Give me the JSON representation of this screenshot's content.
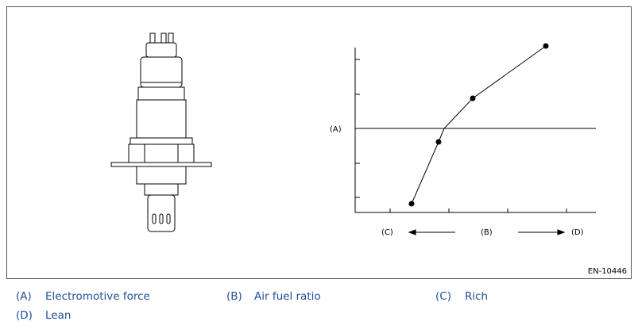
{
  "figure": {
    "graph": {
      "y_label": "(A)",
      "x_labels": {
        "left": "(C)",
        "center": "(B)",
        "right": "(D)"
      }
    },
    "code": "EN-10446"
  },
  "legend": [
    {
      "key": "(A)",
      "text": "Electromotive force"
    },
    {
      "key": "(B)",
      "text": "Air fuel ratio"
    },
    {
      "key": "(C)",
      "text": "Rich"
    },
    {
      "key": "(D)",
      "text": "Lean"
    }
  ]
}
